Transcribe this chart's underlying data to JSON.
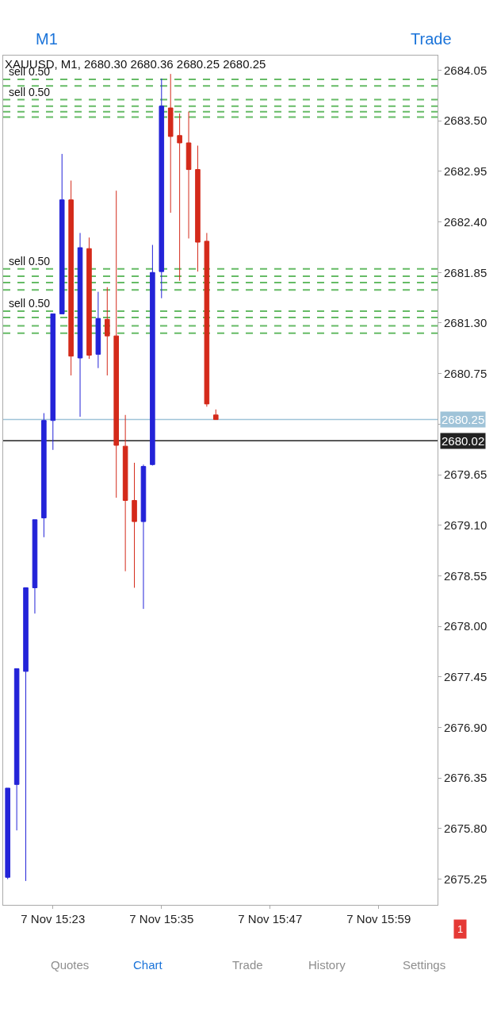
{
  "chart_data": {
    "type": "candlestick",
    "title": "XAUUSD, M1, 2680.30 2680.36 2680.25 2680.25",
    "categories": [
      null,
      null,
      null,
      null,
      null,
      "7 Nov 15:23",
      null,
      null,
      null,
      null,
      null,
      null,
      null,
      null,
      null,
      null,
      null,
      "7 Nov 15:35",
      null,
      null,
      null,
      null,
      null,
      null,
      null,
      null,
      null,
      null,
      null,
      "7 Nov 15:47",
      null,
      null,
      null,
      null,
      null,
      null,
      null,
      null,
      null,
      null,
      null,
      "7 Nov 15:59",
      null,
      null,
      null,
      null,
      null,
      null
    ],
    "ohlc": [
      [
        2675.27,
        2676.24,
        2675.25,
        2676.24
      ],
      [
        2676.28,
        2677.54,
        2675.78,
        2677.54
      ],
      [
        2677.51,
        2678.42,
        2675.23,
        2678.42
      ],
      [
        2678.42,
        2679.16,
        2678.14,
        2679.16
      ],
      [
        2679.18,
        2680.32,
        2678.97,
        2680.24
      ],
      [
        2680.24,
        2681.4,
        2679.92,
        2681.4
      ],
      [
        2681.4,
        2683.14,
        2681.4,
        2682.64
      ],
      [
        2682.64,
        2682.85,
        2680.73,
        2680.94
      ],
      [
        2680.92,
        2682.28,
        2680.28,
        2682.12
      ],
      [
        2682.11,
        2682.23,
        2680.91,
        2680.95
      ],
      [
        2680.96,
        2681.64,
        2680.81,
        2681.35
      ],
      [
        2681.34,
        2681.69,
        2680.73,
        2681.16
      ],
      [
        2681.16,
        2682.74,
        2679.4,
        2679.97
      ],
      [
        2679.96,
        2680.3,
        2678.6,
        2679.37
      ],
      [
        2679.37,
        2679.78,
        2678.42,
        2679.14
      ],
      [
        2679.14,
        2679.76,
        2678.19,
        2679.74
      ],
      [
        2679.76,
        2682.15,
        2679.75,
        2681.85
      ],
      [
        2681.86,
        2683.96,
        2681.57,
        2683.66
      ],
      [
        2683.64,
        2684.01,
        2682.5,
        2683.33
      ],
      [
        2683.34,
        2683.58,
        2681.76,
        2683.26
      ],
      [
        2683.26,
        2683.6,
        2682.22,
        2682.97
      ],
      [
        2682.97,
        2683.23,
        2681.86,
        2682.18
      ],
      [
        2682.19,
        2682.28,
        2680.39,
        2680.42
      ],
      [
        2680.3,
        2680.36,
        2680.25,
        2680.25
      ],
      null,
      null,
      null,
      null,
      null,
      null,
      null,
      null,
      null,
      null,
      null,
      null,
      null,
      null,
      null,
      null,
      null,
      null,
      null,
      null,
      null,
      null,
      null,
      null
    ],
    "colors": [
      "#2323d8",
      "#2323d8",
      "#2323d8",
      "#2323d8",
      "#2323d8",
      "#2323d8",
      "#2323d8",
      "#d42a1a",
      "#2323d8",
      "#d42a1a",
      "#2323d8",
      "#d42a1a",
      "#d42a1a",
      "#d42a1a",
      "#d42a1a",
      "#2323d8",
      "#2323d8",
      "#2323d8",
      "#d42a1a",
      "#d42a1a",
      "#d42a1a",
      "#d42a1a",
      "#d42a1a",
      "#d42a1a",
      null,
      null,
      null,
      null,
      null,
      null,
      null,
      null,
      null,
      null,
      null,
      null,
      null,
      null,
      null,
      null,
      null,
      null,
      null,
      null,
      null,
      null,
      null,
      null
    ],
    "ylim": [
      2674.97,
      2684.21
    ],
    "yticks": [
      {
        "value": 2684.05,
        "label": "2684.05"
      },
      {
        "value": 2683.5,
        "label": "2683.50"
      },
      {
        "value": 2682.95,
        "label": "2682.95"
      },
      {
        "value": 2682.4,
        "label": "2682.40"
      },
      {
        "value": 2681.85,
        "label": "2681.85"
      },
      {
        "value": 2681.3,
        "label": "2681.30"
      },
      {
        "value": 2680.75,
        "label": "2680.75"
      },
      {
        "value": 2680.2,
        "label": null
      },
      {
        "value": 2679.65,
        "label": "2679.65"
      },
      {
        "value": 2679.1,
        "label": "2679.10"
      },
      {
        "value": 2678.55,
        "label": "2678.55"
      },
      {
        "value": 2678.0,
        "label": "2678.00"
      },
      {
        "value": 2677.45,
        "label": "2677.45"
      },
      {
        "value": 2676.9,
        "label": "2676.90"
      },
      {
        "value": 2676.35,
        "label": "2676.35"
      },
      {
        "value": 2675.8,
        "label": "2675.80"
      },
      {
        "value": 2675.25,
        "label": "2675.25"
      }
    ],
    "grid": false,
    "ref_lines": [
      {
        "axis": "y",
        "value": 2683.95,
        "label": "sell 0.50",
        "color": "#66bb66",
        "line_style": "dashed"
      },
      {
        "axis": "y",
        "value": 2683.88,
        "label": null,
        "color": "#66bb66",
        "line_style": "dashed"
      },
      {
        "axis": "y",
        "value": 2683.73,
        "label": "sell 0.50",
        "color": "#66bb66",
        "line_style": "dashed"
      },
      {
        "axis": "y",
        "value": 2683.66,
        "label": null,
        "color": "#66bb66",
        "line_style": "dashed"
      },
      {
        "axis": "y",
        "value": 2683.6,
        "label": null,
        "color": "#66bb66",
        "line_style": "dashed"
      },
      {
        "axis": "y",
        "value": 2683.54,
        "label": null,
        "color": "#66bb66",
        "line_style": "dashed"
      },
      {
        "axis": "y",
        "value": 2681.89,
        "label": "sell 0.50",
        "color": "#66bb66",
        "line_style": "dashed"
      },
      {
        "axis": "y",
        "value": 2681.81,
        "label": null,
        "color": "#66bb66",
        "line_style": "dashed"
      },
      {
        "axis": "y",
        "value": 2681.74,
        "label": null,
        "color": "#66bb66",
        "line_style": "dashed"
      },
      {
        "axis": "y",
        "value": 2681.66,
        "label": null,
        "color": "#66bb66",
        "line_style": "dashed"
      },
      {
        "axis": "y",
        "value": 2681.43,
        "label": "sell 0.50",
        "color": "#66bb66",
        "line_style": "dashed"
      },
      {
        "axis": "y",
        "value": 2681.36,
        "label": null,
        "color": "#66bb66",
        "line_style": "dashed"
      },
      {
        "axis": "y",
        "value": 2681.27,
        "label": null,
        "color": "#66bb66",
        "line_style": "dashed"
      },
      {
        "axis": "y",
        "value": 2681.19,
        "label": null,
        "color": "#66bb66",
        "line_style": "dashed"
      },
      {
        "axis": "y",
        "value": 2680.25,
        "label": "2680.25",
        "color": "#9fc3d8",
        "line_style": "solid"
      },
      {
        "axis": "y",
        "value": 2680.02,
        "label": "2680.02",
        "color": "#222222",
        "line_style": "solid"
      }
    ],
    "annotations": [
      "M1",
      "Trade",
      "Quotes",
      "Chart",
      "Trade",
      "History",
      "Settings",
      "1"
    ]
  }
}
